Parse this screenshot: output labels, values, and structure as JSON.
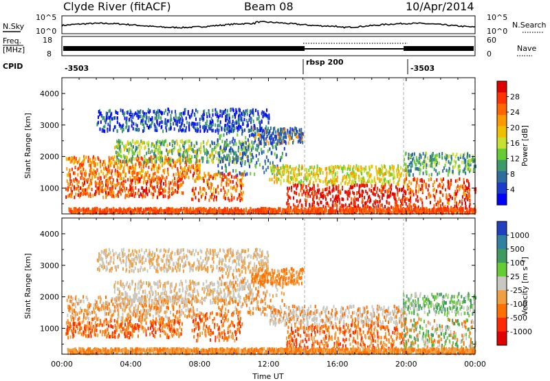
{
  "header": {
    "site": "Clyde River (fitACF)",
    "beam": "Beam 08",
    "date": "10/Apr/2014"
  },
  "summary_panels": {
    "nsky_label": "N.Sky",
    "nsearch_label": "N.Search",
    "freq_label_1": "Freq.",
    "freq_label_2": "[MHz]",
    "nave_label": "Nave",
    "cpid_label": "CPID",
    "noise_ticks_left": [
      "10^5",
      "10^0"
    ],
    "noise_ticks_right": [
      "10^5",
      "10^0"
    ],
    "freq_ticks": [
      "18",
      "8"
    ],
    "nave_ticks": [
      "60",
      "0"
    ]
  },
  "cpid_segments": [
    {
      "start_hr": 0,
      "end_hr": 14.1,
      "label": "-3503"
    },
    {
      "start_hr": 14.1,
      "end_hr": 19.85,
      "label": "rbsp  200"
    },
    {
      "start_hr": 19.85,
      "end_hr": 24,
      "label": "-3503"
    }
  ],
  "chart_data": [
    {
      "type": "heatmap",
      "name": "power",
      "ylabel": "Slant Range [km]",
      "xlabel": "Time UT",
      "xlim": [
        0,
        24
      ],
      "ylim": [
        180,
        4500
      ],
      "x_ticks": [
        "00:00",
        "04:00",
        "08:00",
        "12:00",
        "16:00",
        "20:00",
        "00:00"
      ],
      "y_ticks": [
        1000,
        2000,
        3000,
        4000
      ],
      "colorbar": {
        "label": "Power [dB]",
        "ticks": [
          "28",
          "24",
          "20",
          "16",
          "12",
          "8",
          "4"
        ],
        "colors": [
          "#e00000",
          "#ff3300",
          "#ff6600",
          "#ff9900",
          "#f0c000",
          "#c8e030",
          "#66cc33",
          "#3a9a6a",
          "#2e6e9e",
          "#1a3ccc",
          "#0000ff"
        ]
      }
    },
    {
      "type": "heatmap",
      "name": "velocity",
      "ylabel": "Slant Range [km]",
      "xlabel": "Time UT",
      "xlim": [
        0,
        24
      ],
      "ylim": [
        180,
        4500
      ],
      "x_ticks": [
        "00:00",
        "04:00",
        "08:00",
        "12:00",
        "16:00",
        "20:00",
        "00:00"
      ],
      "y_ticks": [
        1000,
        2000,
        3000,
        4000
      ],
      "colorbar": {
        "label": "Velocity [m s⁻¹]",
        "ticks": [
          "1000",
          "500",
          "100",
          "25",
          "-25",
          "-100",
          "-500",
          "-1000"
        ],
        "colors": [
          "#2040c0",
          "#3080a0",
          "#3f9a60",
          "#66cc33",
          "#c8c8c0",
          "#f0a040",
          "#ff7000",
          "#ff2800",
          "#e00000"
        ]
      }
    }
  ],
  "axis": {
    "time_label": "Time UT",
    "dashed_marker_hours": [
      14.1,
      19.85
    ]
  }
}
